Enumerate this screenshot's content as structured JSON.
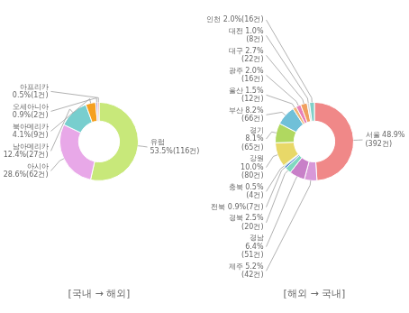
{
  "chart_data": [
    {
      "type": "doughnut",
      "title": "[국내 → 해외]",
      "categories": [
        "유럽",
        "아시아",
        "남아메리카",
        "북아메리카",
        "오세아니아",
        "아프리카"
      ],
      "values": [
        53.5,
        28.6,
        12.4,
        4.1,
        0.9,
        0.5
      ],
      "value_labels": [
        "유럽\n53.5%(116건)",
        "아시아\n28.6%(62건)",
        "남아메리카\n12.4%(27건)",
        "북아메리카\n4.1%(9건)",
        "오세아니아\n0.9%(2건)",
        "아프리카\n0.5%(1건)"
      ],
      "colors": [
        "#c8e87a",
        "#e8a8e8",
        "#78cece",
        "#f5a020",
        "#b4a8dc",
        "#e07070"
      ],
      "data_labels": true
    },
    {
      "type": "doughnut",
      "title": "[해외 → 국내]",
      "categories": [
        "서울",
        "제주",
        "경남",
        "경북",
        "전북",
        "충북",
        "강원",
        "경기",
        "부산",
        "울산",
        "광주",
        "대구",
        "대전",
        "인천"
      ],
      "values": [
        48.9,
        5.2,
        6.4,
        2.5,
        0.9,
        0.5,
        10.0,
        8.1,
        8.2,
        1.5,
        2.0,
        2.7,
        1.0,
        2.0
      ],
      "value_labels": [
        "서울 48.9%\n(392건)",
        "제주 5.2%\n(42건)",
        "경남\n6.4%\n(51건)",
        "경북 2.5%\n(20건)",
        "전북 0.9%(7건)",
        "충북 0.5%\n(4건)",
        "강원\n10.0%\n(80건)",
        "경기\n8.1%\n(65건)",
        "부산 8.2%\n(66건)",
        "울산 1.5%\n(12건)",
        "광주 2.0%\n(16건)",
        "대구 2.7%\n(22건)",
        "대전 1.0%\n(8건)",
        "인천 2.0%(16건)"
      ],
      "colors": [
        "#f08888",
        "#d898d8",
        "#c880c8",
        "#80d8c0",
        "#5888d8",
        "#88c888",
        "#e8d868",
        "#b0d860",
        "#70c0d8",
        "#f0b878",
        "#e880b8",
        "#f0a060",
        "#d8d8d8",
        "#80d0c8"
      ],
      "data_labels": true
    }
  ]
}
